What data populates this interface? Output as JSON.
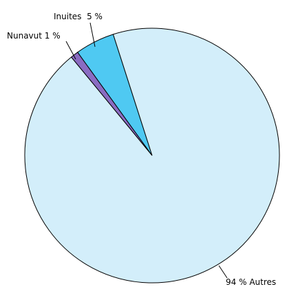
{
  "chart_data": {
    "type": "pie",
    "categories": [
      "Nunavut",
      "Inuites",
      "Autres"
    ],
    "values": [
      1,
      5,
      94
    ],
    "value_labels": [
      "1 %",
      "5 %",
      "94 %"
    ],
    "colors": [
      "#8a6cc2",
      "#4fc9f2",
      "#d3eefa"
    ]
  }
}
